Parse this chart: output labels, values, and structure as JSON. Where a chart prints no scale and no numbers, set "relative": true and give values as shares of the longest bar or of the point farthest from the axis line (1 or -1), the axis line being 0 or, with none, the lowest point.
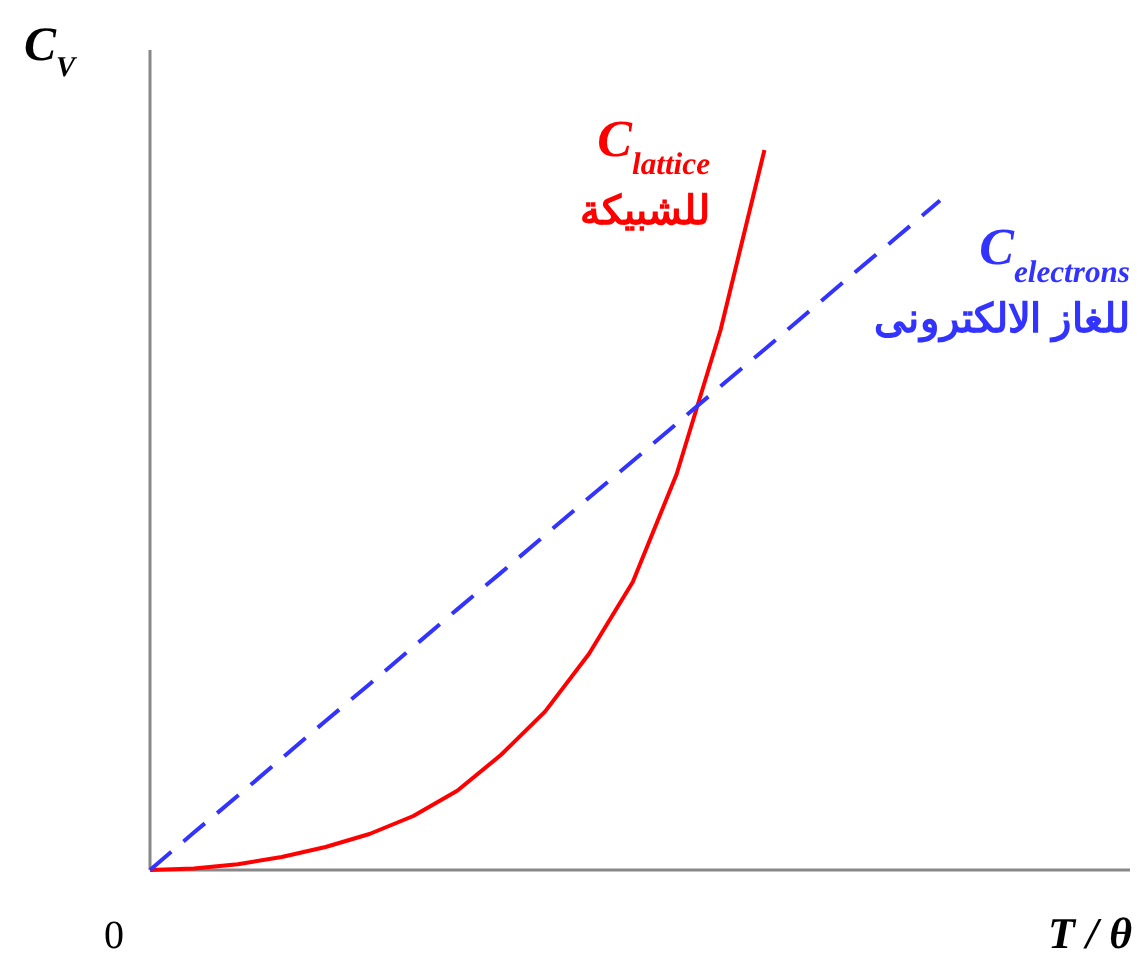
{
  "chart_data": {
    "type": "line",
    "relative": true,
    "ylabel": "C$_{V}$",
    "xlabel": "T / θ",
    "annotations": [
      "0"
    ],
    "marker": "none",
    "categories": [
      null,
      null,
      null,
      null,
      null,
      null,
      null,
      null,
      null,
      null,
      null,
      null,
      null,
      null,
      null,
      null,
      null,
      null,
      null
    ],
    "series": [
      {
        "name": "C$_{lattice}$\nللشبيكة",
        "color": "#ff0000",
        "line_style": "solid",
        "values": [
          0,
          0.002,
          0.008,
          0.018,
          0.032,
          0.05,
          0.075,
          0.11,
          0.16,
          0.22,
          0.3,
          0.4,
          0.55,
          0.75,
          1.0,
          null,
          null,
          null,
          null
        ]
      },
      {
        "name": "C$_{electrons}$\nللغاز الالكترونى",
        "color": "#3333ff",
        "line_style": "dashed",
        "values": [
          0,
          0.052,
          0.103,
          0.155,
          0.207,
          0.258,
          0.31,
          0.362,
          0.413,
          0.465,
          0.517,
          0.568,
          0.62,
          0.672,
          0.723,
          0.775,
          0.827,
          0.878,
          0.93
        ]
      }
    ]
  }
}
